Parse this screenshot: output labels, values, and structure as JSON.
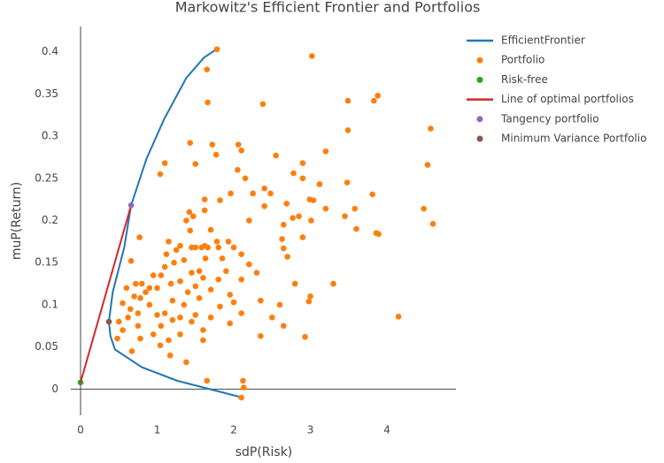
{
  "chart_data": {
    "type": "scatter",
    "title": "Markowitz's Efficient Frontier and Portfolios",
    "x_label": "sdP(Risk)",
    "y_label": "muP(Return)",
    "xlim": [
      -0.127,
      4.9
    ],
    "ylim": [
      -0.031,
      0.43
    ],
    "xticks": [
      0,
      1,
      2,
      3,
      4
    ],
    "yticks": [
      0,
      0.05,
      0.1,
      0.15,
      0.2,
      0.25,
      0.3,
      0.35,
      0.4
    ],
    "grid": false,
    "zeroline": true,
    "legend": "right",
    "series": [
      {
        "name": "EfficientFrontier",
        "color": "#1f77b4",
        "mode": "lines",
        "x": [
          2.07,
          1.26,
          0.8,
          0.45,
          0.39,
          0.37,
          0.42,
          0.57,
          0.66,
          0.86,
          1.09,
          1.38,
          1.61,
          1.79
        ],
        "values": [
          -0.009,
          0.01,
          0.026,
          0.047,
          0.063,
          0.08,
          0.115,
          0.168,
          0.218,
          0.273,
          0.32,
          0.369,
          0.393,
          0.404
        ]
      },
      {
        "name": "Portfolio",
        "color": "#ff7f0e",
        "mode": "markers",
        "x": [
          1.78,
          3.02,
          1.65,
          1.66,
          2.38,
          3.88,
          3.83,
          3.49,
          4.57,
          3.49,
          1.43,
          1.72,
          2.06,
          2.1,
          3.2,
          1.77,
          2.55,
          1.1,
          1.5,
          2.05,
          2.9,
          4.53,
          2.15,
          1.04,
          2.78,
          2.9,
          3.48,
          3.12,
          2.4,
          1.96,
          2.25,
          2.48,
          3.81,
          2.99,
          3.04,
          1.82,
          1.62,
          2.69,
          2.4,
          4.48,
          3.2,
          3.58,
          1.42,
          1.47,
          1.62,
          2.85,
          2.77,
          3.01,
          3.45,
          4.6,
          1.38,
          2.2,
          2.65,
          3.6,
          3.86,
          3.89,
          1.43,
          1.7,
          2.63,
          0.77,
          2.65,
          2.9,
          1.93,
          1.78,
          1.15,
          1.3,
          1.45,
          1.5,
          1.58,
          1.62,
          1.66,
          1.8,
          2.0,
          1.25,
          1.12,
          2.1,
          2.7,
          1.85,
          1.63,
          1.35,
          1.22,
          0.66,
          2.2,
          1.1,
          1.9,
          1.55,
          1.45,
          2.3,
          0.95,
          1.05,
          1.6,
          1.8,
          2.1,
          1.3,
          0.72,
          0.8,
          1.18,
          2.8,
          3.3,
          0.9,
          1.0,
          1.5,
          1.7,
          0.6,
          0.85,
          1.4,
          1.95,
          0.7,
          0.78,
          1.55,
          3.0,
          2.35,
          2.0,
          0.55,
          1.2,
          2.98,
          1.35,
          0.9,
          2.6,
          1.82,
          0.65,
          0.75,
          1.1,
          1.5,
          2.1,
          1.0,
          0.62,
          1.3,
          1.7,
          2.5,
          1.2,
          0.5,
          1.45,
          1.95,
          0.75,
          1.05,
          2.65,
          1.6,
          0.55,
          0.95,
          1.3,
          2.35,
          2.93,
          0.48,
          0.78,
          1.15,
          1.6,
          1.04,
          0.67,
          1.17,
          1.38,
          1.65,
          2.12,
          2.13,
          2.1,
          4.15
        ],
        "values": [
          0.403,
          0.395,
          0.379,
          0.34,
          0.338,
          0.348,
          0.342,
          0.342,
          0.309,
          0.307,
          0.292,
          0.29,
          0.29,
          0.283,
          0.282,
          0.278,
          0.277,
          0.268,
          0.267,
          0.26,
          0.268,
          0.266,
          0.25,
          0.255,
          0.256,
          0.25,
          0.245,
          0.243,
          0.238,
          0.232,
          0.232,
          0.232,
          0.231,
          0.225,
          0.224,
          0.224,
          0.225,
          0.22,
          0.217,
          0.214,
          0.214,
          0.214,
          0.21,
          0.205,
          0.212,
          0.205,
          0.203,
          0.2,
          0.205,
          0.196,
          0.2,
          0.2,
          0.195,
          0.19,
          0.185,
          0.184,
          0.188,
          0.189,
          0.178,
          0.18,
          0.167,
          0.18,
          0.175,
          0.175,
          0.175,
          0.17,
          0.168,
          0.168,
          0.168,
          0.17,
          0.168,
          0.168,
          0.168,
          0.165,
          0.16,
          0.16,
          0.157,
          0.155,
          0.155,
          0.153,
          0.15,
          0.152,
          0.148,
          0.145,
          0.14,
          0.14,
          0.138,
          0.138,
          0.135,
          0.135,
          0.132,
          0.13,
          0.13,
          0.128,
          0.125,
          0.125,
          0.125,
          0.125,
          0.125,
          0.12,
          0.12,
          0.122,
          0.118,
          0.12,
          0.115,
          0.115,
          0.112,
          0.11,
          0.108,
          0.108,
          0.11,
          0.105,
          0.103,
          0.102,
          0.105,
          0.104,
          0.1,
          0.1,
          0.1,
          0.098,
          0.095,
          0.09,
          0.09,
          0.088,
          0.09,
          0.088,
          0.085,
          0.085,
          0.085,
          0.085,
          0.082,
          0.08,
          0.08,
          0.078,
          0.075,
          0.075,
          0.075,
          0.07,
          0.07,
          0.065,
          0.065,
          0.063,
          0.062,
          0.06,
          0.06,
          0.058,
          0.058,
          0.052,
          0.045,
          0.04,
          0.032,
          0.01,
          0.01,
          0.002,
          -0.01,
          0.086
        ]
      },
      {
        "name": "Risk-free",
        "color": "#2ca02c",
        "mode": "markers",
        "x": [
          0
        ],
        "values": [
          0.008
        ]
      },
      {
        "name": "Line of optimal portfolios",
        "color": "#d62728",
        "mode": "lines",
        "x": [
          0,
          0.66
        ],
        "values": [
          0.008,
          0.218
        ]
      },
      {
        "name": "Tangency portfolio",
        "color": "#9467bd",
        "mode": "markers",
        "x": [
          0.66
        ],
        "values": [
          0.218
        ]
      },
      {
        "name": "Minimum Variance Portfolio",
        "color": "#8c564b",
        "mode": "markers",
        "x": [
          0.37
        ],
        "values": [
          0.08
        ]
      }
    ]
  }
}
